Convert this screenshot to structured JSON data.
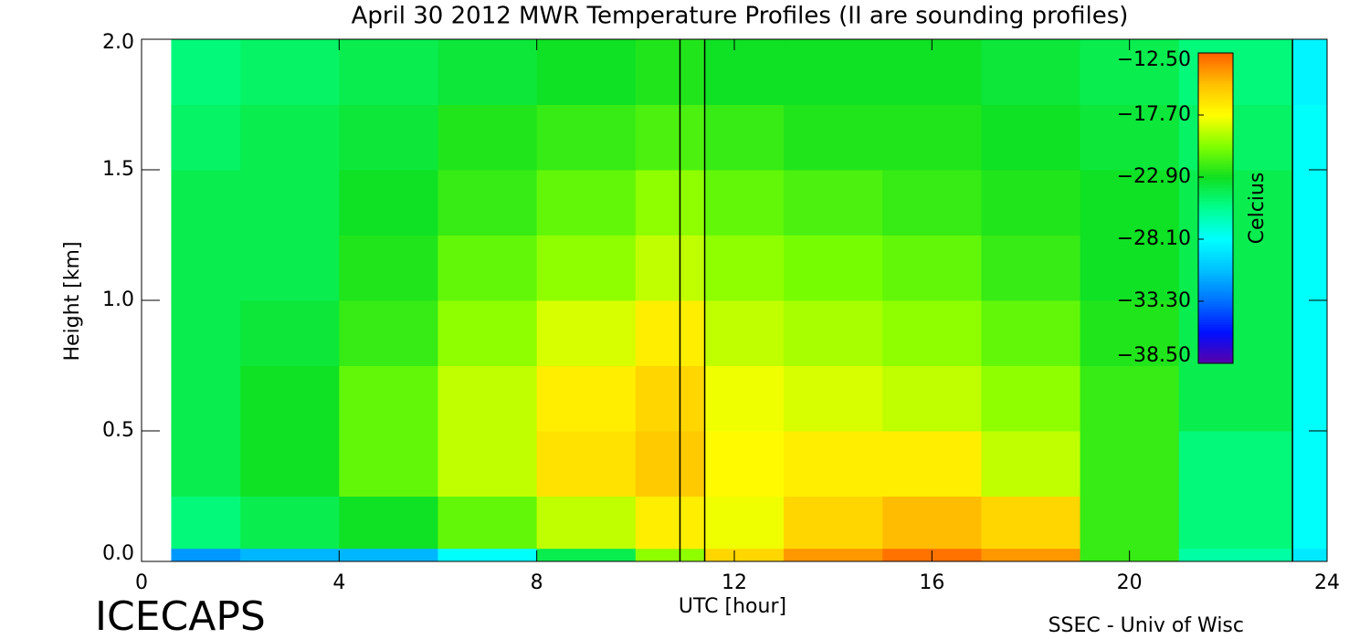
{
  "chart_data": {
    "type": "heatmap",
    "title": "April 30 2012 MWR Temperature Profiles (II are sounding profiles)",
    "xlabel": "UTC [hour]",
    "ylabel": "Height [km]",
    "footer_left": "ICECAPS",
    "footer_right": "SSEC - Univ of Wisc",
    "colorbar_label": "Celcius",
    "xlim": [
      0,
      24
    ],
    "xticks": [
      0,
      4,
      8,
      12,
      16,
      20,
      24
    ],
    "ylim": [
      0,
      2
    ],
    "yticks": [
      {
        "value": 0,
        "label": "0.0"
      },
      {
        "value": 0.5,
        "label": "0.5"
      },
      {
        "value": 1,
        "label": "1.0"
      },
      {
        "value": 1.5,
        "label": "1.5"
      },
      {
        "value": 2,
        "label": "2.0"
      }
    ],
    "clim": [
      -38.5,
      -12.5
    ],
    "cticks": [
      {
        "value": -12.5,
        "label": "−12.50"
      },
      {
        "value": -17.7,
        "label": "−17.70"
      },
      {
        "value": -22.9,
        "label": "−22.90"
      },
      {
        "value": -28.1,
        "label": "−28.10"
      },
      {
        "value": -33.3,
        "label": "−33.30"
      },
      {
        "value": -38.5,
        "label": "−38.50"
      }
    ],
    "colors": [
      "#5a00a8",
      "#0010ff",
      "#0070ff",
      "#00c0ff",
      "#00ffff",
      "#00ff90",
      "#10e020",
      "#80ff00",
      "#ffff00",
      "#ffc000",
      "#ff6000"
    ],
    "sounding_times": [
      10.9,
      11.4,
      23.3
    ],
    "x_edges": [
      0.6,
      2,
      4,
      6,
      8,
      10,
      11.4,
      13,
      15,
      17,
      19,
      21,
      23.3,
      24
    ],
    "y_edges": [
      0,
      0.05,
      0.25,
      0.5,
      0.75,
      1.0,
      1.25,
      1.5,
      1.75,
      2.0
    ],
    "z": [
      [
        -32,
        -31,
        -31,
        -28,
        -24,
        -20,
        -16,
        -14,
        -13,
        -14,
        -22,
        -26,
        -29
      ],
      [
        -25,
        -24,
        -23,
        -21,
        -19,
        -17,
        -18,
        -16,
        -15,
        -16,
        -22,
        -25,
        -28
      ],
      [
        -24,
        -23,
        -21,
        -19,
        -16.5,
        -15.5,
        -17.5,
        -17,
        -17,
        -19,
        -22,
        -25,
        -28
      ],
      [
        -24,
        -23,
        -21,
        -19,
        -17,
        -16,
        -18,
        -18.5,
        -19,
        -20,
        -22,
        -24,
        -28
      ],
      [
        -24,
        -23.5,
        -22,
        -20,
        -18.5,
        -17,
        -19,
        -19.5,
        -20,
        -21,
        -22.5,
        -24,
        -28
      ],
      [
        -24,
        -24,
        -22.5,
        -21,
        -20,
        -19,
        -20,
        -20.5,
        -21,
        -22,
        -23,
        -24,
        -28
      ],
      [
        -24,
        -24,
        -23,
        -22,
        -21,
        -20,
        -21,
        -21.5,
        -22,
        -22.5,
        -23,
        -24,
        -28
      ],
      [
        -24.5,
        -24,
        -23.5,
        -22.5,
        -22,
        -21.5,
        -22,
        -22.5,
        -22.5,
        -23,
        -23.5,
        -24.5,
        -28
      ],
      [
        -25,
        -24.5,
        -24,
        -23.5,
        -23,
        -22.5,
        -23,
        -23,
        -23,
        -23.5,
        -24,
        -25,
        -28.5
      ]
    ]
  }
}
